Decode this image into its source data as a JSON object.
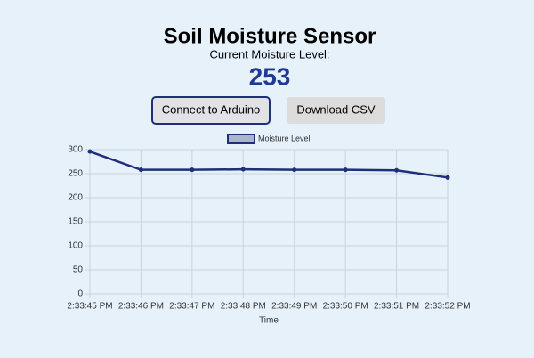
{
  "header": {
    "title": "Soil Moisture Sensor",
    "subtitle": "Current Moisture Level:",
    "reading": "253"
  },
  "buttons": [
    "Connect to Arduino",
    "Download CSV"
  ],
  "chart_data": {
    "type": "line",
    "x_label": "Time",
    "categories": [
      "2:33:45 PM",
      "2:33:46 PM",
      "2:33:47 PM",
      "2:33:48 PM",
      "2:33:49 PM",
      "2:33:50 PM",
      "2:33:51 PM",
      "2:33:52 PM"
    ],
    "series": [
      {
        "name": "Moisture Level",
        "color": "#1f2f7a",
        "fill": "#aab4cc",
        "values": [
          296,
          258,
          258,
          259,
          258,
          258,
          257,
          242
        ]
      }
    ],
    "ylim": [
      0,
      300
    ],
    "yticks": [
      0,
      50,
      100,
      150,
      200,
      250,
      300
    ],
    "grid": true,
    "legend": "top"
  }
}
